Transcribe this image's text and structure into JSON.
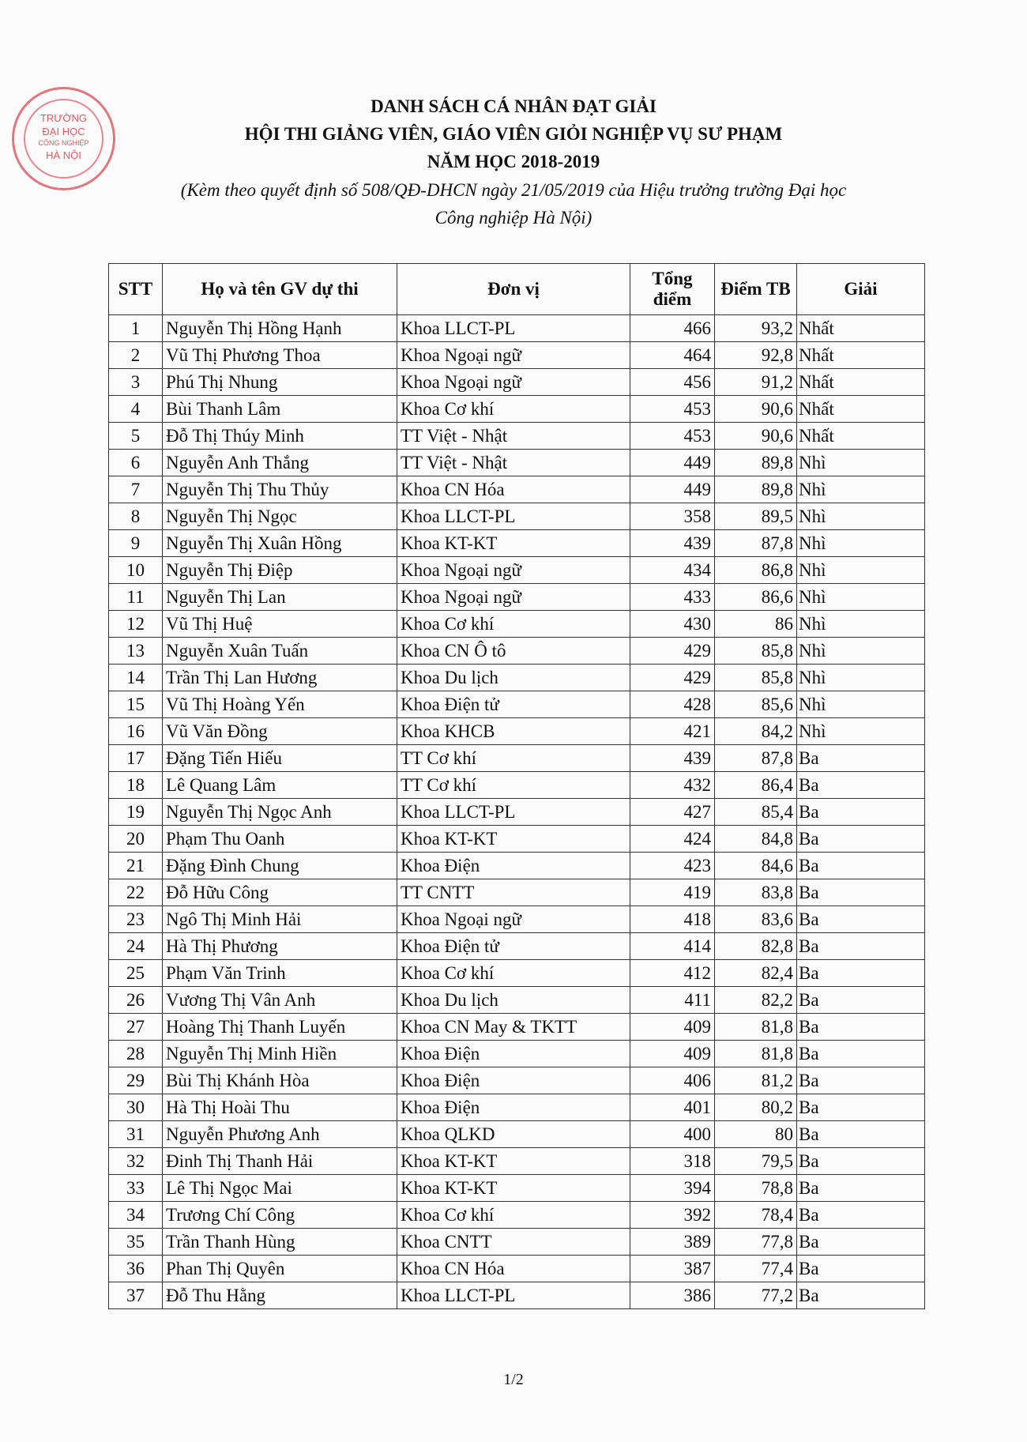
{
  "stamp": {
    "line1": "TRƯỜNG",
    "line2": "ĐẠI HỌC",
    "line3": "CÔNG NGHIỆP",
    "line4": "HÀ NỘI",
    "color": "#dc3c46"
  },
  "title": {
    "line1": "DANH SÁCH CÁ NHÂN ĐẠT GIẢI",
    "line2": "HỘI THI GIẢNG VIÊN, GIÁO VIÊN GIỎI NGHIỆP VỤ SƯ PHẠM",
    "line3": "NĂM HỌC 2018-2019",
    "note1": "(Kèm theo quyết định số 508/QĐ-DHCN ngày 21/05/2019 của Hiệu trưởng trường Đại học",
    "note2": "Công nghiệp Hà Nội)"
  },
  "table": {
    "headers": [
      "STT",
      "Họ và tên GV dự thi",
      "Đơn vị",
      "Tổng điểm",
      "Điểm TB",
      "Giải"
    ],
    "rows": [
      [
        "1",
        "Nguyễn Thị Hồng Hạnh",
        "Khoa LLCT-PL",
        "466",
        "93,2",
        "Nhất"
      ],
      [
        "2",
        "Vũ Thị Phương Thoa",
        "Khoa Ngoại ngữ",
        "464",
        "92,8",
        "Nhất"
      ],
      [
        "3",
        "Phú Thị Nhung",
        "Khoa Ngoại ngữ",
        "456",
        "91,2",
        "Nhất"
      ],
      [
        "4",
        "Bùi Thanh Lâm",
        "Khoa Cơ khí",
        "453",
        "90,6",
        "Nhất"
      ],
      [
        "5",
        "Đỗ Thị Thúy Minh",
        "TT Việt - Nhật",
        "453",
        "90,6",
        "Nhất"
      ],
      [
        "6",
        "Nguyễn Anh Thắng",
        "TT Việt - Nhật",
        "449",
        "89,8",
        "Nhì"
      ],
      [
        "7",
        "Nguyễn Thị Thu Thủy",
        "Khoa CN Hóa",
        "449",
        "89,8",
        "Nhì"
      ],
      [
        "8",
        "Nguyễn Thị Ngọc",
        "Khoa LLCT-PL",
        "358",
        "89,5",
        "Nhì"
      ],
      [
        "9",
        "Nguyễn Thị Xuân Hồng",
        "Khoa KT-KT",
        "439",
        "87,8",
        "Nhì"
      ],
      [
        "10",
        "Nguyễn Thị Điệp",
        "Khoa Ngoại ngữ",
        "434",
        "86,8",
        "Nhì"
      ],
      [
        "11",
        "Nguyễn Thị Lan",
        "Khoa Ngoại ngữ",
        "433",
        "86,6",
        "Nhì"
      ],
      [
        "12",
        "Vũ Thị Huệ",
        "Khoa Cơ khí",
        "430",
        "86",
        "Nhì"
      ],
      [
        "13",
        "Nguyễn Xuân Tuấn",
        "Khoa CN Ô tô",
        "429",
        "85,8",
        "Nhì"
      ],
      [
        "14",
        "Trần Thị Lan Hương",
        "Khoa Du lịch",
        "429",
        "85,8",
        "Nhì"
      ],
      [
        "15",
        "Vũ Thị Hoàng Yến",
        "Khoa Điện tử",
        "428",
        "85,6",
        "Nhì"
      ],
      [
        "16",
        "Vũ Văn Đồng",
        "Khoa KHCB",
        "421",
        "84,2",
        "Nhì"
      ],
      [
        "17",
        "Đặng Tiến Hiếu",
        "TT Cơ khí",
        "439",
        "87,8",
        "Ba"
      ],
      [
        "18",
        "Lê Quang Lâm",
        "TT Cơ khí",
        "432",
        "86,4",
        "Ba"
      ],
      [
        "19",
        "Nguyễn Thị Ngọc Anh",
        "Khoa LLCT-PL",
        "427",
        "85,4",
        "Ba"
      ],
      [
        "20",
        "Phạm Thu Oanh",
        "Khoa KT-KT",
        "424",
        "84,8",
        "Ba"
      ],
      [
        "21",
        "Đặng Đình Chung",
        "Khoa Điện",
        "423",
        "84,6",
        "Ba"
      ],
      [
        "22",
        "Đỗ Hữu Công",
        "TT CNTT",
        "419",
        "83,8",
        "Ba"
      ],
      [
        "23",
        "Ngô Thị Minh Hải",
        "Khoa Ngoại ngữ",
        "418",
        "83,6",
        "Ba"
      ],
      [
        "24",
        "Hà Thị Phương",
        "Khoa Điện tử",
        "414",
        "82,8",
        "Ba"
      ],
      [
        "25",
        "Phạm Văn Trinh",
        "Khoa Cơ khí",
        "412",
        "82,4",
        "Ba"
      ],
      [
        "26",
        "Vương Thị Vân Anh",
        "Khoa Du lịch",
        "411",
        "82,2",
        "Ba"
      ],
      [
        "27",
        "Hoàng Thị Thanh Luyến",
        "Khoa CN May & TKTT",
        "409",
        "81,8",
        "Ba"
      ],
      [
        "28",
        "Nguyễn Thị Minh Hiền",
        "Khoa Điện",
        "409",
        "81,8",
        "Ba"
      ],
      [
        "29",
        "Bùi Thị Khánh Hòa",
        "Khoa Điện",
        "406",
        "81,2",
        "Ba"
      ],
      [
        "30",
        "Hà Thị Hoài Thu",
        "Khoa Điện",
        "401",
        "80,2",
        "Ba"
      ],
      [
        "31",
        "Nguyễn Phương Anh",
        "Khoa QLKD",
        "400",
        "80",
        "Ba"
      ],
      [
        "32",
        "Đinh Thị Thanh Hải",
        "Khoa KT-KT",
        "318",
        "79,5",
        "Ba"
      ],
      [
        "33",
        "Lê Thị Ngọc Mai",
        "Khoa KT-KT",
        "394",
        "78,8",
        "Ba"
      ],
      [
        "34",
        "Trương Chí Công",
        "Khoa Cơ khí",
        "392",
        "78,4",
        "Ba"
      ],
      [
        "35",
        "Trần Thanh Hùng",
        "Khoa CNTT",
        "389",
        "77,8",
        "Ba"
      ],
      [
        "36",
        "Phan Thị Quyên",
        "Khoa CN Hóa",
        "387",
        "77,4",
        "Ba"
      ],
      [
        "37",
        "Đỗ Thu Hằng",
        "Khoa LLCT-PL",
        "386",
        "77,2",
        "Ba"
      ]
    ]
  },
  "page_number": "1/2"
}
